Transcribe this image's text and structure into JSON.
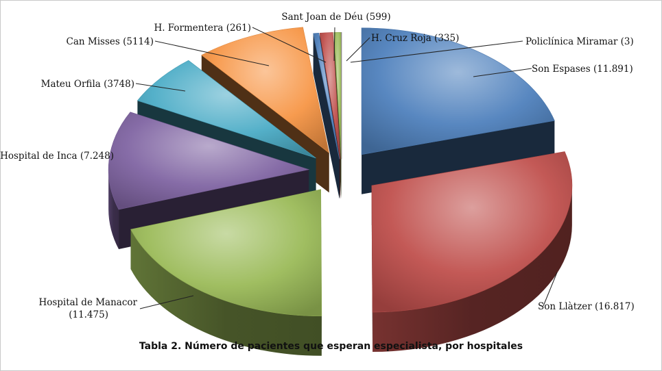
{
  "chart_data": {
    "type": "pie",
    "title": "",
    "caption": "Tabla 2. Número de pacientes que esperan especialista, por hospitales",
    "categories": [
      "Son Espases",
      "Son Llàtzer",
      "Hospital de Manacor",
      "Hospital de Inca",
      "Mateu Orfila",
      "Can Misses",
      "H. Formentera",
      "Sant Joan de Déu",
      "H. Cruz Roja",
      "Policlínica Miramar"
    ],
    "values": [
      11891,
      16817,
      11475,
      7248,
      3748,
      5114,
      261,
      599,
      335,
      3
    ],
    "labels": [
      [
        "Son Espases (11.891)"
      ],
      [
        "Son Llàtzer (16.817)"
      ],
      [
        "Hospital de Manacor",
        "(11.475)"
      ],
      [
        "Hospital de Inca (7.248)"
      ],
      [
        "Mateu Orfila (3748)"
      ],
      [
        "Can Misses (5114)"
      ],
      [
        "H. Formentera (261)"
      ],
      [
        "Sant Joan de Déu (599)"
      ],
      [
        "H. Cruz Roja  (335)"
      ],
      [
        "Policlínica Miramar (3)"
      ]
    ],
    "colors": [
      "#4f81bd",
      "#c0504d",
      "#9bbb59",
      "#8064a2",
      "#4bacc6",
      "#f79646",
      "#4f81bd",
      "#c0504d",
      "#9bbb59",
      "#8064a2"
    ],
    "exploded": true,
    "three_d": true,
    "legend": "none"
  }
}
